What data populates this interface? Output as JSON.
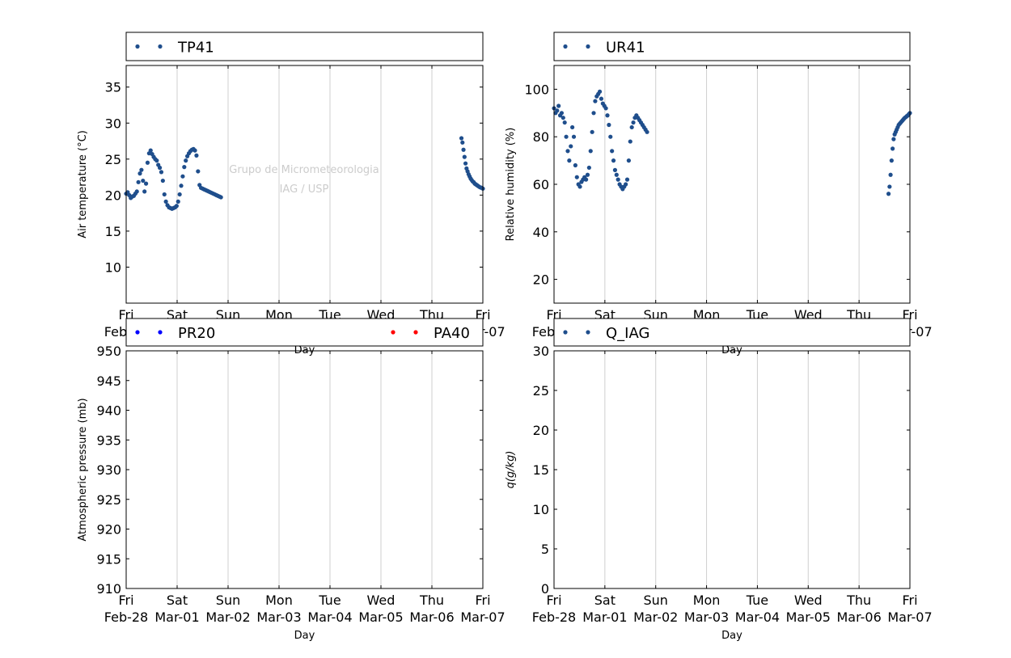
{
  "watermark": {
    "line1": "Grupo de Micrometeorologia",
    "line2": "IAG / USP"
  },
  "colors": {
    "tp41": "#1f4e8c",
    "ur41": "#1f4e8c",
    "pr20": "#0000ff",
    "pa40": "#ff0000",
    "q_iag": "#1f4e8c",
    "grid": "#cfcfcf",
    "watermark": "#cccccc"
  },
  "x_ticks": [
    {
      "day": "Fri",
      "date": "Feb-28"
    },
    {
      "day": "Sat",
      "date": "Mar-01"
    },
    {
      "day": "Sun",
      "date": "Mar-02"
    },
    {
      "day": "Mon",
      "date": "Mar-03"
    },
    {
      "day": "Tue",
      "date": "Mar-04"
    },
    {
      "day": "Wed",
      "date": "Mar-05"
    },
    {
      "day": "Thu",
      "date": "Mar-06"
    },
    {
      "day": "Fri",
      "date": "Mar-07"
    }
  ],
  "chart_data": [
    {
      "id": "temperature",
      "type": "scatter",
      "xlabel": "Day",
      "ylabel": "Air temperature (°C)",
      "ylim": [
        5,
        38
      ],
      "yticks": [
        10,
        15,
        20,
        25,
        30,
        35
      ],
      "xlim": [
        "2014-02-28",
        "2014-03-07"
      ],
      "grid": "vertical",
      "legend_placement": "above",
      "series": [
        {
          "name": "TP41",
          "color": "#1f4e8c",
          "segments": [
            {
              "x": [
                0.0,
                0.03,
                0.06,
                0.09,
                0.12,
                0.15,
                0.18,
                0.21,
                0.24,
                0.27,
                0.3,
                0.33,
                0.36,
                0.39,
                0.42,
                0.45,
                0.48,
                0.51,
                0.54,
                0.57,
                0.6,
                0.63,
                0.66,
                0.69,
                0.72,
                0.75,
                0.78,
                0.81,
                0.84,
                0.87,
                0.9,
                0.93,
                0.96,
                0.99,
                1.02,
                1.05,
                1.08,
                1.11,
                1.14,
                1.17,
                1.2,
                1.23,
                1.26,
                1.29,
                1.32,
                1.35,
                1.38,
                1.41,
                1.44,
                1.47,
                1.5,
                1.53,
                1.56,
                1.59,
                1.62,
                1.65,
                1.68,
                1.71,
                1.74,
                1.77,
                1.8,
                1.83,
                1.86
              ],
              "y": [
                20.2,
                20.4,
                20.0,
                19.6,
                19.8,
                19.9,
                20.2,
                20.5,
                21.8,
                23.0,
                23.5,
                22.0,
                20.5,
                21.6,
                24.5,
                25.8,
                26.2,
                25.7,
                25.3,
                25.0,
                24.8,
                24.2,
                23.8,
                23.2,
                22.0,
                20.1,
                19.1,
                18.6,
                18.3,
                18.2,
                18.1,
                18.2,
                18.3,
                18.5,
                19.1,
                20.1,
                21.3,
                22.6,
                23.9,
                24.8,
                25.4,
                25.8,
                26.1,
                26.3,
                26.4,
                26.2,
                25.5,
                23.3,
                21.4,
                21.0,
                20.9,
                20.8,
                20.7,
                20.6,
                20.5,
                20.4,
                20.3,
                20.2,
                20.1,
                20.0,
                19.9,
                19.8,
                19.7
              ]
            },
            {
              "x": [
                6.58,
                6.6,
                6.62,
                6.64,
                6.66,
                6.68,
                6.7,
                6.72,
                6.74,
                6.76,
                6.78,
                6.8,
                6.82,
                6.84,
                6.86,
                6.88,
                6.9,
                6.92,
                6.94,
                6.96,
                6.98,
                7.0
              ],
              "y": [
                27.9,
                27.3,
                26.3,
                25.3,
                24.4,
                23.7,
                23.3,
                22.9,
                22.6,
                22.3,
                22.1,
                21.9,
                21.8,
                21.6,
                21.5,
                21.4,
                21.3,
                21.2,
                21.1,
                21.05,
                21.0,
                20.9
              ]
            }
          ]
        }
      ]
    },
    {
      "id": "humidity",
      "type": "scatter",
      "xlabel": "Day",
      "ylabel": "Relative humidity (%)",
      "ylim": [
        10,
        110
      ],
      "yticks": [
        20,
        40,
        60,
        80,
        100
      ],
      "xlim": [
        "2014-02-28",
        "2014-03-07"
      ],
      "grid": "vertical",
      "legend_placement": "above",
      "series": [
        {
          "name": "UR41",
          "color": "#1f4e8c",
          "segments": [
            {
              "x": [
                0.0,
                0.03,
                0.06,
                0.09,
                0.12,
                0.15,
                0.18,
                0.21,
                0.24,
                0.27,
                0.3,
                0.33,
                0.36,
                0.39,
                0.42,
                0.45,
                0.48,
                0.51,
                0.54,
                0.57,
                0.6,
                0.63,
                0.66,
                0.69,
                0.72,
                0.75,
                0.78,
                0.81,
                0.84,
                0.87,
                0.9,
                0.93,
                0.96,
                0.99,
                1.02,
                1.05,
                1.08,
                1.11,
                1.14,
                1.17,
                1.2,
                1.23,
                1.26,
                1.29,
                1.32,
                1.35,
                1.38,
                1.41,
                1.44,
                1.47,
                1.5,
                1.53,
                1.56,
                1.59,
                1.62,
                1.65,
                1.68,
                1.71,
                1.74,
                1.77,
                1.8,
                1.83
              ],
              "y": [
                92,
                90,
                91,
                93,
                89,
                90,
                88,
                86,
                80,
                74,
                70,
                76,
                84,
                80,
                68,
                63,
                60,
                59,
                61,
                62,
                63,
                62,
                64,
                67,
                74,
                82,
                90,
                95,
                97,
                98,
                99,
                96,
                94,
                93,
                92,
                89,
                85,
                80,
                74,
                70,
                66,
                64,
                62,
                60,
                59,
                58,
                59,
                60,
                62,
                70,
                78,
                84,
                86,
                88,
                89,
                88,
                87,
                86,
                85,
                84,
                83,
                82
              ]
            },
            {
              "x": [
                6.58,
                6.6,
                6.62,
                6.64,
                6.66,
                6.68,
                6.7,
                6.72,
                6.74,
                6.76,
                6.78,
                6.8,
                6.82,
                6.84,
                6.86,
                6.88,
                6.9,
                6.92,
                6.94,
                6.96,
                6.98,
                7.0
              ],
              "y": [
                56,
                59,
                64,
                70,
                75,
                79,
                81,
                82,
                83,
                84,
                85,
                85.5,
                86,
                86.5,
                87,
                87.5,
                88,
                88.3,
                88.7,
                89,
                89.5,
                90
              ]
            }
          ]
        }
      ]
    },
    {
      "id": "pressure",
      "type": "scatter",
      "xlabel": "Day",
      "ylabel": "Atmospheric pressure (mb)",
      "ylim": [
        910,
        950
      ],
      "yticks": [
        910,
        915,
        920,
        925,
        930,
        935,
        940,
        945,
        950
      ],
      "xlim": [
        "2014-02-28",
        "2014-03-07"
      ],
      "grid": "vertical",
      "legend_placement": "above",
      "series": [
        {
          "name": "PR20",
          "color": "#0000ff",
          "segments": []
        },
        {
          "name": "PA40",
          "color": "#ff0000",
          "segments": []
        }
      ]
    },
    {
      "id": "specific_humidity",
      "type": "scatter",
      "xlabel": "Day",
      "ylabel": "q(g/kg)",
      "ylim": [
        0,
        30
      ],
      "yticks": [
        0,
        5,
        10,
        15,
        20,
        25,
        30
      ],
      "xlim": [
        "2014-02-28",
        "2014-03-07"
      ],
      "grid": "vertical",
      "legend_placement": "above",
      "series": [
        {
          "name": "Q_IAG",
          "color": "#1f4e8c",
          "segments": []
        }
      ]
    }
  ]
}
